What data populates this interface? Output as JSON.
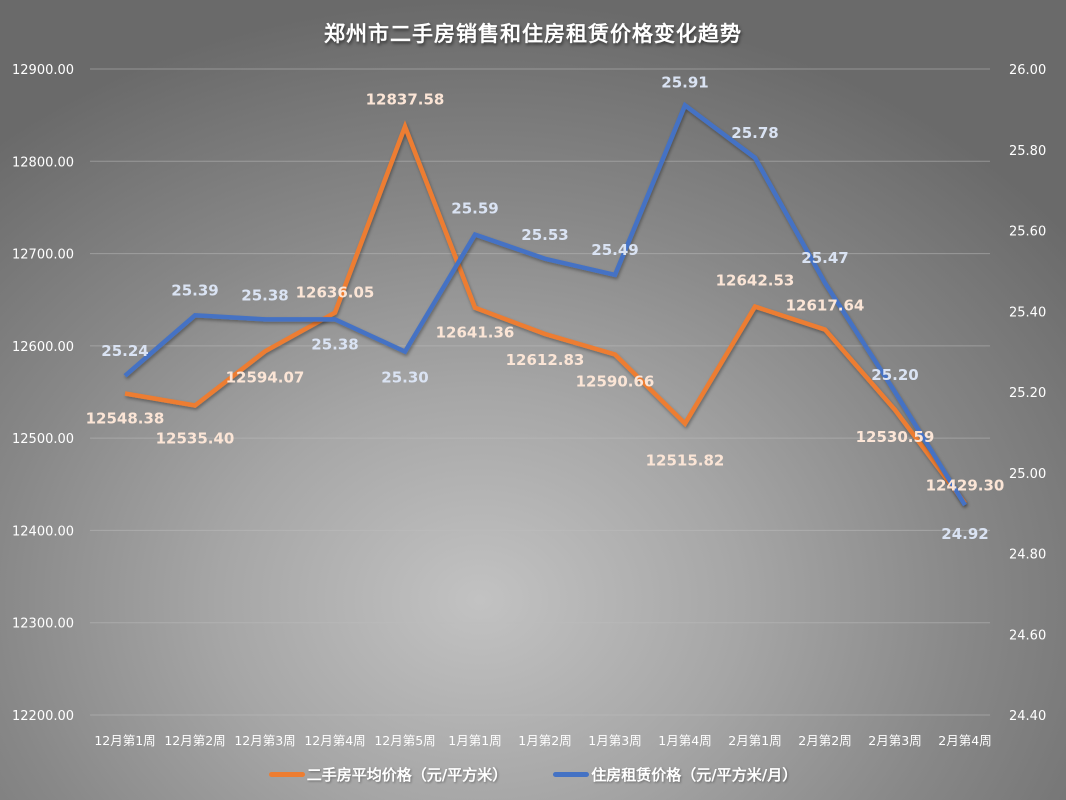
{
  "title": "郑州市二手房销售和住房租赁价格变化趋势",
  "colors": {
    "sale_line": "#ED7D31",
    "rent_line": "#4472C4",
    "sale_label": "#FBE5D6",
    "rent_label": "#DAE3F3",
    "gridline": "#bdbdbd",
    "axis_text": "#ffffff"
  },
  "legend": [
    {
      "name": "二手房平均价格（元/平方米）",
      "color": "#ED7D31"
    },
    {
      "name": "住房租赁价格（元/平方米/月）",
      "color": "#4472C4"
    }
  ],
  "left_axis": {
    "ticks": [
      "12900.00",
      "12800.00",
      "12700.00",
      "12600.00",
      "12500.00",
      "12400.00",
      "12300.00",
      "12200.00"
    ],
    "min": 12200,
    "max": 12900
  },
  "right_axis": {
    "ticks": [
      "26.00",
      "25.80",
      "25.60",
      "25.40",
      "25.20",
      "25.00",
      "24.80",
      "24.60",
      "24.40"
    ],
    "min": 24.4,
    "max": 26.0
  },
  "chart_data": {
    "type": "line",
    "title": "郑州市二手房销售和住房租赁价格变化趋势",
    "xlabel": "",
    "ylabel": "",
    "categories": [
      "12月第1周",
      "12月第2周",
      "12月第3周",
      "12月第4周",
      "12月第5周",
      "1月第1周",
      "1月第2周",
      "1月第3周",
      "1月第4周",
      "2月第1周",
      "2月第2周",
      "2月第3周",
      "2月第4周"
    ],
    "series": [
      {
        "name": "二手房平均价格（元/平方米）",
        "axis": "left",
        "color": "#ED7D31",
        "values": [
          12548.38,
          12535.4,
          12594.07,
          12636.05,
          12837.58,
          12641.36,
          12612.83,
          12590.66,
          12515.82,
          12642.53,
          12617.64,
          12530.59,
          12429.3
        ],
        "labels": [
          "12548.38",
          "12535.40",
          "12594.07",
          "12636.05",
          "12837.58",
          "12641.36",
          "12612.83",
          "12590.66",
          "12515.82",
          "12642.53",
          "12617.64",
          "12530.59",
          "12429.30"
        ]
      },
      {
        "name": "住房租赁价格（元/平方米/月）",
        "axis": "right",
        "color": "#4472C4",
        "values": [
          25.24,
          25.39,
          25.38,
          25.38,
          25.3,
          25.59,
          25.53,
          25.49,
          25.91,
          25.78,
          25.47,
          25.2,
          24.92
        ],
        "labels": [
          "25.24",
          "25.39",
          "25.38",
          "25.38",
          "25.30",
          "25.59",
          "25.53",
          "25.49",
          "25.91",
          "25.78",
          "25.47",
          "25.20",
          "24.92"
        ]
      }
    ],
    "ylim": [
      12200,
      12900
    ],
    "y2lim": [
      24.4,
      26.0
    ],
    "grid": true,
    "legend_position": "bottom"
  }
}
